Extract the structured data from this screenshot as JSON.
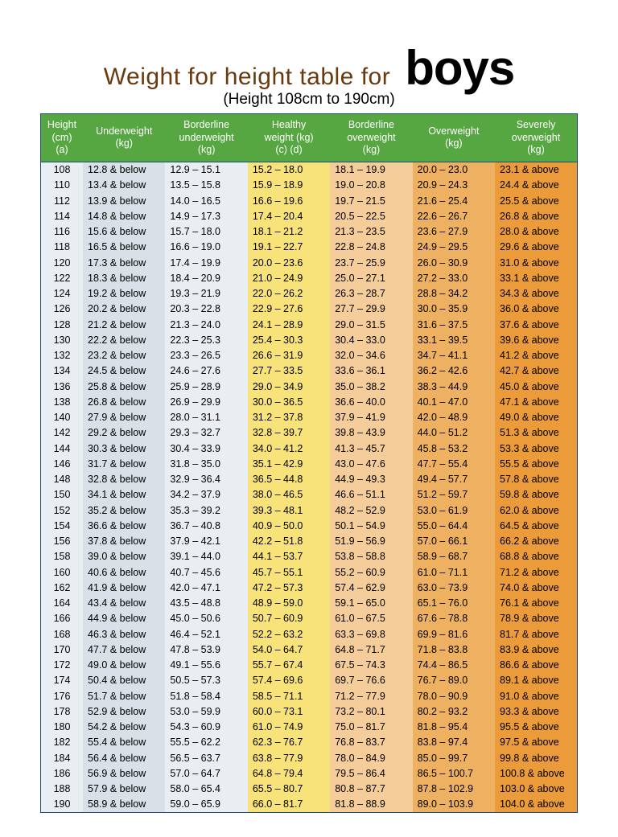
{
  "title_pre": "Weight for height table for",
  "title_big": "boys",
  "subtitle": "(Height 108cm to 190cm)",
  "header_bg": "#56a641",
  "columns": [
    {
      "lines": [
        "Height",
        "(cm)",
        "(a)"
      ],
      "bg": "#e9eef3"
    },
    {
      "lines": [
        "Underweight",
        "(kg)"
      ],
      "bg": "#d9e0e8"
    },
    {
      "lines": [
        "Borderline",
        "underweight",
        "(kg)"
      ],
      "bg": "#e9eef3"
    },
    {
      "lines": [
        "Healthy",
        "weight (kg)",
        "(c)      (d)"
      ],
      "bg": "#f8e27a"
    },
    {
      "lines": [
        "Borderline",
        "overweight",
        "(kg)"
      ],
      "bg": "#f5cd9a"
    },
    {
      "lines": [
        "Overweight",
        "(kg)"
      ],
      "bg": "#eeb162"
    },
    {
      "lines": [
        "Severely",
        "overweight",
        "(kg)"
      ],
      "bg": "#eb9b3a"
    }
  ],
  "rows": [
    [
      "108",
      "12.8 & below",
      "12.9 – 15.1",
      "15.2 – 18.0",
      "18.1 – 19.9",
      "20.0 – 23.0",
      "23.1 & above"
    ],
    [
      "110",
      "13.4 & below",
      "13.5 – 15.8",
      "15.9 – 18.9",
      "19.0 – 20.8",
      "20.9 – 24.3",
      "24.4 & above"
    ],
    [
      "112",
      "13.9 & below",
      "14.0 – 16.5",
      "16.6 – 19.6",
      "19.7 – 21.5",
      "21.6 – 25.4",
      "25.5 & above"
    ],
    [
      "114",
      "14.8 & below",
      "14.9 – 17.3",
      "17.4 – 20.4",
      "20.5 – 22.5",
      "22.6 – 26.7",
      "26.8 & above"
    ],
    [
      "116",
      "15.6 & below",
      "15.7 – 18.0",
      "18.1 – 21.2",
      "21.3 – 23.5",
      "23.6 – 27.9",
      "28.0 & above"
    ],
    [
      "118",
      "16.5 & below",
      "16.6 – 19.0",
      "19.1 – 22.7",
      "22.8 – 24.8",
      "24.9 – 29.5",
      "29.6 & above"
    ],
    [
      "120",
      "17.3 & below",
      "17.4 – 19.9",
      "20.0 – 23.6",
      "23.7 – 25.9",
      "26.0 – 30.9",
      "31.0 & above"
    ],
    [
      "122",
      "18.3 & below",
      "18.4 – 20.9",
      "21.0 – 24.9",
      "25.0 – 27.1",
      "27.2 – 33.0",
      "33.1 & above"
    ],
    [
      "124",
      "19.2 & below",
      "19.3 – 21.9",
      "22.0 – 26.2",
      "26.3 – 28.7",
      "28.8 – 34.2",
      "34.3 & above"
    ],
    [
      "126",
      "20.2 & below",
      "20.3 – 22.8",
      "22.9 – 27.6",
      "27.7 – 29.9",
      "30.0 – 35.9",
      "36.0 & above"
    ],
    [
      "128",
      "21.2 & below",
      "21.3 – 24.0",
      "24.1 – 28.9",
      "29.0 – 31.5",
      "31.6 – 37.5",
      "37.6 & above"
    ],
    [
      "130",
      "22.2 & below",
      "22.3 – 25.3",
      "25.4 – 30.3",
      "30.4 – 33.0",
      "33.1 – 39.5",
      "39.6 & above"
    ],
    [
      "132",
      "23.2 & below",
      "23.3 – 26.5",
      "26.6 – 31.9",
      "32.0 – 34.6",
      "34.7 – 41.1",
      "41.2 & above"
    ],
    [
      "134",
      "24.5 & below",
      "24.6 – 27.6",
      "27.7 – 33.5",
      "33.6 – 36.1",
      "36.2 – 42.6",
      "42.7 & above"
    ],
    [
      "136",
      "25.8 & below",
      "25.9 – 28.9",
      "29.0 – 34.9",
      "35.0 – 38.2",
      "38.3 – 44.9",
      "45.0 & above"
    ],
    [
      "138",
      "26.8 & below",
      "26.9 – 29.9",
      "30.0 – 36.5",
      "36.6 – 40.0",
      "40.1 – 47.0",
      "47.1 & above"
    ],
    [
      "140",
      "27.9 & below",
      "28.0 – 31.1",
      "31.2 – 37.8",
      "37.9 – 41.9",
      "42.0 – 48.9",
      "49.0 & above"
    ],
    [
      "142",
      "29.2 & below",
      "29.3 – 32.7",
      "32.8 – 39.7",
      "39.8 – 43.9",
      "44.0 – 51.2",
      "51.3 & above"
    ],
    [
      "144",
      "30.3 & below",
      "30.4 – 33.9",
      "34.0 – 41.2",
      "41.3 – 45.7",
      "45.8 – 53.2",
      "53.3 & above"
    ],
    [
      "146",
      "31.7 & below",
      "31.8 – 35.0",
      "35.1 – 42.9",
      "43.0 – 47.6",
      "47.7 – 55.4",
      "55.5 & above"
    ],
    [
      "148",
      "32.8 & below",
      "32.9 – 36.4",
      "36.5 – 44.8",
      "44.9 – 49.3",
      "49.4 – 57.7",
      "57.8 & above"
    ],
    [
      "150",
      "34.1 & below",
      "34.2 – 37.9",
      "38.0 – 46.5",
      "46.6 – 51.1",
      "51.2 – 59.7",
      "59.8 & above"
    ],
    [
      "152",
      "35.2 & below",
      "35.3 – 39.2",
      "39.3 – 48.1",
      "48.2 – 52.9",
      "53.0 – 61.9",
      "62.0 & above"
    ],
    [
      "154",
      "36.6 & below",
      "36.7 – 40.8",
      "40.9 – 50.0",
      "50.1 – 54.9",
      "55.0 – 64.4",
      "64.5 & above"
    ],
    [
      "156",
      "37.8 & below",
      "37.9 – 42.1",
      "42.2 – 51.8",
      "51.9 – 56.9",
      "57.0 – 66.1",
      "66.2 & above"
    ],
    [
      "158",
      "39.0 & below",
      "39.1 – 44.0",
      "44.1 – 53.7",
      "53.8 – 58.8",
      "58.9 – 68.7",
      "68.8 & above"
    ],
    [
      "160",
      "40.6 & below",
      "40.7 – 45.6",
      "45.7 – 55.1",
      "55.2 – 60.9",
      "61.0 – 71.1",
      "71.2 & above"
    ],
    [
      "162",
      "41.9 & below",
      "42.0 – 47.1",
      "47.2 – 57.3",
      "57.4 – 62.9",
      "63.0 – 73.9",
      "74.0 & above"
    ],
    [
      "164",
      "43.4 & below",
      "43.5 – 48.8",
      "48.9 – 59.0",
      "59.1 – 65.0",
      "65.1 – 76.0",
      "76.1 & above"
    ],
    [
      "166",
      "44.9 & below",
      "45.0 – 50.6",
      "50.7 – 60.9",
      "61.0 – 67.5",
      "67.6 – 78.8",
      "78.9 & above"
    ],
    [
      "168",
      "46.3 & below",
      "46.4 – 52.1",
      "52.2 – 63.2",
      "63.3 – 69.8",
      "69.9 – 81.6",
      "81.7 & above"
    ],
    [
      "170",
      "47.7 & below",
      "47.8 – 53.9",
      "54.0 – 64.7",
      "64.8 – 71.7",
      "71.8 – 83.8",
      "83.9 & above"
    ],
    [
      "172",
      "49.0 & below",
      "49.1 – 55.6",
      "55.7 – 67.4",
      "67.5 – 74.3",
      "74.4 – 86.5",
      "86.6 & above"
    ],
    [
      "174",
      "50.4 & below",
      "50.5 – 57.3",
      "57.4 – 69.6",
      "69.7 – 76.6",
      "76.7 – 89.0",
      "89.1 & above"
    ],
    [
      "176",
      "51.7 & below",
      "51.8 – 58.4",
      "58.5 – 71.1",
      "71.2 – 77.9",
      "78.0 – 90.9",
      "91.0 & above"
    ],
    [
      "178",
      "52.9 & below",
      "53.0 – 59.9",
      "60.0 – 73.1",
      "73.2 – 80.1",
      "80.2 – 93.2",
      "93.3 & above"
    ],
    [
      "180",
      "54.2 & below",
      "54.3 – 60.9",
      "61.0 – 74.9",
      "75.0 – 81.7",
      "81.8 – 95.4",
      "95.5 & above"
    ],
    [
      "182",
      "55.4 & below",
      "55.5 – 62.2",
      "62.3 – 76.7",
      "76.8 – 83.7",
      "83.8 – 97.4",
      "97.5 & above"
    ],
    [
      "184",
      "56.4 & below",
      "56.5 – 63.7",
      "63.8 – 77.9",
      "78.0 – 84.9",
      "85.0 – 99.7",
      "99.8 & above"
    ],
    [
      "186",
      "56.9 & below",
      "57.0 – 64.7",
      "64.8 – 79.4",
      "79.5 – 86.4",
      "86.5 – 100.7",
      "100.8 & above"
    ],
    [
      "188",
      "57.9 & below",
      "58.0 – 65.4",
      "65.5 – 80.7",
      "80.8 – 87.7",
      "87.8 – 102.9",
      "103.0 & above"
    ],
    [
      "190",
      "58.9 & below",
      "59.0 – 65.9",
      "66.0 – 81.7",
      "81.8 – 88.9",
      "89.0 – 103.9",
      "104.0 & above"
    ]
  ]
}
